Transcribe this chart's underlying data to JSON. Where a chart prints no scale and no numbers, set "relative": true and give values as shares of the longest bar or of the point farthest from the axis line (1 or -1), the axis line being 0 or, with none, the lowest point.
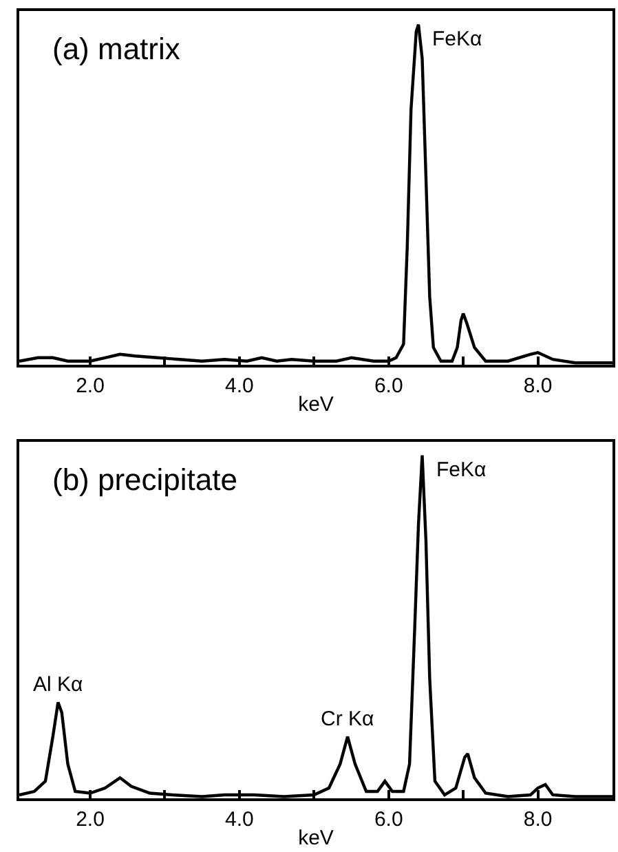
{
  "chart_data": [
    {
      "type": "line",
      "title": "(a) matrix",
      "xlabel": "keV",
      "relative": true,
      "color": "#000000",
      "x": [
        1.05,
        1.3,
        1.5,
        1.7,
        2.0,
        2.2,
        2.4,
        2.6,
        2.9,
        3.2,
        3.5,
        3.8,
        4.1,
        4.3,
        4.5,
        4.7,
        5.0,
        5.3,
        5.5,
        5.8,
        6.0,
        6.1,
        6.2,
        6.25,
        6.3,
        6.37,
        6.4,
        6.45,
        6.5,
        6.55,
        6.6,
        6.7,
        6.85,
        6.92,
        6.97,
        7.0,
        7.05,
        7.15,
        7.3,
        7.6,
        7.9,
        8.0,
        8.2,
        8.5,
        9.0
      ],
      "values": [
        0.01,
        0.02,
        0.02,
        0.01,
        0.01,
        0.02,
        0.03,
        0.025,
        0.02,
        0.015,
        0.01,
        0.015,
        0.01,
        0.02,
        0.01,
        0.015,
        0.01,
        0.01,
        0.02,
        0.01,
        0.01,
        0.02,
        0.06,
        0.35,
        0.75,
        0.98,
        1.0,
        0.9,
        0.55,
        0.2,
        0.05,
        0.01,
        0.01,
        0.05,
        0.13,
        0.15,
        0.12,
        0.05,
        0.01,
        0.01,
        0.03,
        0.035,
        0.015,
        0.005,
        0.005
      ],
      "xlim": [
        1.05,
        9.0
      ],
      "xticks": [
        {
          "value": 2,
          "label": "2.0"
        },
        {
          "value": 3,
          "label": null
        },
        {
          "value": 4,
          "label": "4.0"
        },
        {
          "value": 5,
          "label": null
        },
        {
          "value": 6,
          "label": "6.0"
        },
        {
          "value": 7,
          "label": null
        },
        {
          "value": 8,
          "label": "8.0"
        }
      ],
      "tick_labels": "x",
      "grid": false,
      "annotations": [
        {
          "text": "FeKα",
          "x": 6.4,
          "y": 1.0
        }
      ]
    },
    {
      "type": "line",
      "title": "(b) precipitate",
      "xlabel": "keV",
      "relative": true,
      "color": "#000000",
      "x": [
        1.05,
        1.25,
        1.4,
        1.5,
        1.57,
        1.62,
        1.7,
        1.8,
        2.0,
        2.2,
        2.4,
        2.55,
        2.8,
        3.1,
        3.5,
        3.8,
        4.2,
        4.6,
        5.0,
        5.2,
        5.35,
        5.45,
        5.55,
        5.7,
        5.85,
        5.95,
        6.05,
        6.2,
        6.28,
        6.35,
        6.4,
        6.45,
        6.5,
        6.55,
        6.62,
        6.75,
        6.9,
        7.02,
        7.06,
        7.15,
        7.3,
        7.6,
        7.9,
        8.0,
        8.1,
        8.2,
        8.5,
        9.0
      ],
      "values": [
        0.01,
        0.02,
        0.05,
        0.18,
        0.28,
        0.25,
        0.1,
        0.02,
        0.015,
        0.03,
        0.06,
        0.035,
        0.015,
        0.01,
        0.005,
        0.01,
        0.01,
        0.005,
        0.01,
        0.03,
        0.1,
        0.18,
        0.1,
        0.02,
        0.02,
        0.05,
        0.02,
        0.02,
        0.1,
        0.5,
        0.8,
        1.0,
        0.75,
        0.35,
        0.05,
        0.01,
        0.03,
        0.12,
        0.13,
        0.06,
        0.015,
        0.005,
        0.01,
        0.03,
        0.04,
        0.01,
        0.005,
        0.005
      ],
      "xlim": [
        1.05,
        9.0
      ],
      "xticks": [
        {
          "value": 2,
          "label": "2.0"
        },
        {
          "value": 3,
          "label": null
        },
        {
          "value": 4,
          "label": "4.0"
        },
        {
          "value": 5,
          "label": null
        },
        {
          "value": 6,
          "label": "6.0"
        },
        {
          "value": 7,
          "label": null
        },
        {
          "value": 8,
          "label": "8.0"
        }
      ],
      "tick_labels": "x",
      "grid": false,
      "annotations": [
        {
          "text": "FeKα",
          "x": 6.45,
          "y": 1.0
        },
        {
          "text": "Al Kα",
          "x": 1.57,
          "y": 0.28
        },
        {
          "text": "Cr Kα",
          "x": 5.45,
          "y": 0.18
        }
      ]
    }
  ]
}
